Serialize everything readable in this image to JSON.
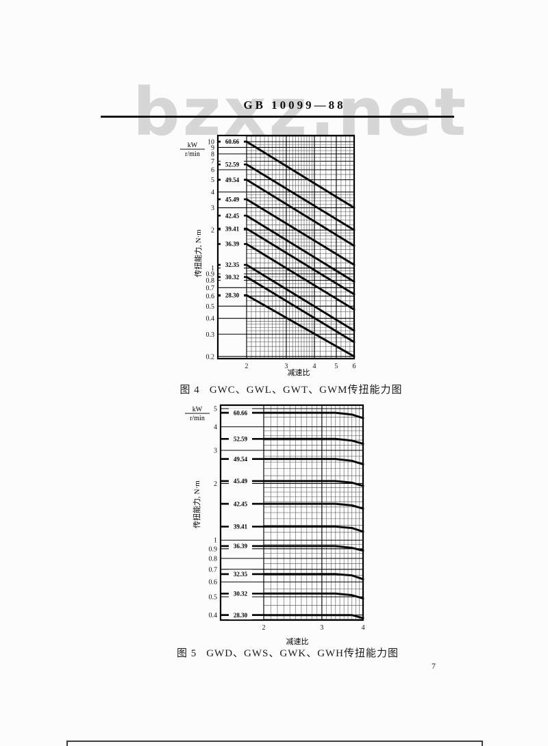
{
  "page": {
    "header_title": "GB 10099—88",
    "watermark": "bzxz.net",
    "page_number": "7"
  },
  "chart_data": [
    {
      "type": "line",
      "fig_label": "图 4",
      "caption_text": "GWC、GWL、GWT、GWM传扭能力图",
      "title": "图 4 GWC、GWL、GWT、GWM传扭能力图",
      "xlabel": "减速比",
      "ylabel": "传扭能力, N·m",
      "y_unit": {
        "top": "kW",
        "bottom": "r/min"
      },
      "x_scale": "log",
      "y_scale": "log",
      "xlim": [
        2,
        6
      ],
      "ylim": [
        0.2,
        10
      ],
      "x_ticks": [
        "2",
        "3",
        "4",
        "5",
        "6"
      ],
      "y_ticks": [
        "10",
        "9",
        "8",
        "7",
        "6",
        "5",
        "4",
        "3",
        "2",
        "1",
        "0.9",
        "0.8",
        "0.7",
        "0.6",
        "0.5",
        "0.4",
        "0.3",
        "0.2"
      ],
      "grid": "log-log dense",
      "legend_position": "labels at left edge of each curve",
      "series": [
        {
          "name": "60.66",
          "points": [
            [
              2,
              10.0
            ],
            [
              6,
              3.0
            ]
          ]
        },
        {
          "name": "52.59",
          "points": [
            [
              2,
              6.6
            ],
            [
              6,
              2.0
            ]
          ]
        },
        {
          "name": "49.54",
          "points": [
            [
              2,
              5.0
            ],
            [
              6,
              1.5
            ]
          ]
        },
        {
          "name": "45.49",
          "points": [
            [
              2,
              3.5
            ],
            [
              6,
              1.06
            ]
          ]
        },
        {
          "name": "42.45",
          "points": [
            [
              2,
              2.6
            ],
            [
              6,
              0.78
            ]
          ]
        },
        {
          "name": "39.41",
          "points": [
            [
              2,
              2.05
            ],
            [
              6,
              0.62
            ]
          ]
        },
        {
          "name": "36.39",
          "points": [
            [
              2,
              1.55
            ],
            [
              6,
              0.47
            ]
          ]
        },
        {
          "name": "32.35",
          "points": [
            [
              2,
              1.06
            ],
            [
              6,
              0.32
            ]
          ]
        },
        {
          "name": "30.32",
          "points": [
            [
              2,
              0.85
            ],
            [
              6,
              0.26
            ]
          ]
        },
        {
          "name": "28.30",
          "points": [
            [
              2,
              0.61
            ],
            [
              6,
              0.2
            ]
          ]
        }
      ]
    },
    {
      "type": "line",
      "fig_label": "图 5",
      "caption_text": "GWD、GWS、GWK、GWH传扭能力图",
      "title": "图 5 GWD、GWS、GWK、GWH传扭能力图",
      "xlabel": "减速比",
      "ylabel": "传扭能力, N·m",
      "y_unit": {
        "top": "kW",
        "bottom": "r/min"
      },
      "x_scale": "log",
      "y_scale": "log",
      "xlim": [
        2,
        4
      ],
      "ylim": [
        0.4,
        5
      ],
      "x_ticks": [
        "2",
        "3",
        "4"
      ],
      "y_ticks": [
        "5",
        "4",
        "3",
        "2",
        "1",
        "0.9",
        "0.8",
        "0.7",
        "0.6",
        "0.5",
        "0.4"
      ],
      "grid": "log-log dense",
      "legend_position": "labels at left edge of each curve",
      "series": [
        {
          "name": "60.66",
          "points": [
            [
              2,
              4.75
            ],
            [
              3.3,
              4.75
            ],
            [
              3.7,
              4.65
            ],
            [
              4,
              4.45
            ]
          ]
        },
        {
          "name": "52.59",
          "points": [
            [
              2,
              3.45
            ],
            [
              3.3,
              3.45
            ],
            [
              3.7,
              3.38
            ],
            [
              4,
              3.25
            ]
          ]
        },
        {
          "name": "49.54",
          "points": [
            [
              2,
              2.7
            ],
            [
              3.3,
              2.7
            ],
            [
              3.7,
              2.64
            ],
            [
              4,
              2.53
            ]
          ]
        },
        {
          "name": "45.49",
          "points": [
            [
              2,
              2.06
            ],
            [
              3.3,
              2.06
            ],
            [
              3.7,
              2.02
            ],
            [
              4,
              1.94
            ]
          ]
        },
        {
          "name": "42.45",
          "points": [
            [
              2,
              1.56
            ],
            [
              3.3,
              1.56
            ],
            [
              3.7,
              1.53
            ],
            [
              4,
              1.47
            ]
          ]
        },
        {
          "name": "39.41",
          "points": [
            [
              2,
              1.18
            ],
            [
              3.3,
              1.18
            ],
            [
              3.7,
              1.16
            ],
            [
              4,
              1.11
            ]
          ]
        },
        {
          "name": "36.39",
          "points": [
            [
              2,
              0.93
            ],
            [
              3.3,
              0.93
            ],
            [
              3.7,
              0.91
            ],
            [
              4,
              0.88
            ]
          ]
        },
        {
          "name": "32.35",
          "points": [
            [
              2,
              0.66
            ],
            [
              3.3,
              0.66
            ],
            [
              3.7,
              0.65
            ],
            [
              4,
              0.62
            ]
          ]
        },
        {
          "name": "30.32",
          "points": [
            [
              2,
              0.52
            ],
            [
              3.3,
              0.52
            ],
            [
              3.7,
              0.51
            ],
            [
              4,
              0.49
            ]
          ]
        },
        {
          "name": "28.30",
          "points": [
            [
              2,
              0.4
            ],
            [
              3.3,
              0.4
            ],
            [
              3.7,
              0.4
            ],
            [
              4,
              0.385
            ]
          ]
        }
      ]
    }
  ]
}
